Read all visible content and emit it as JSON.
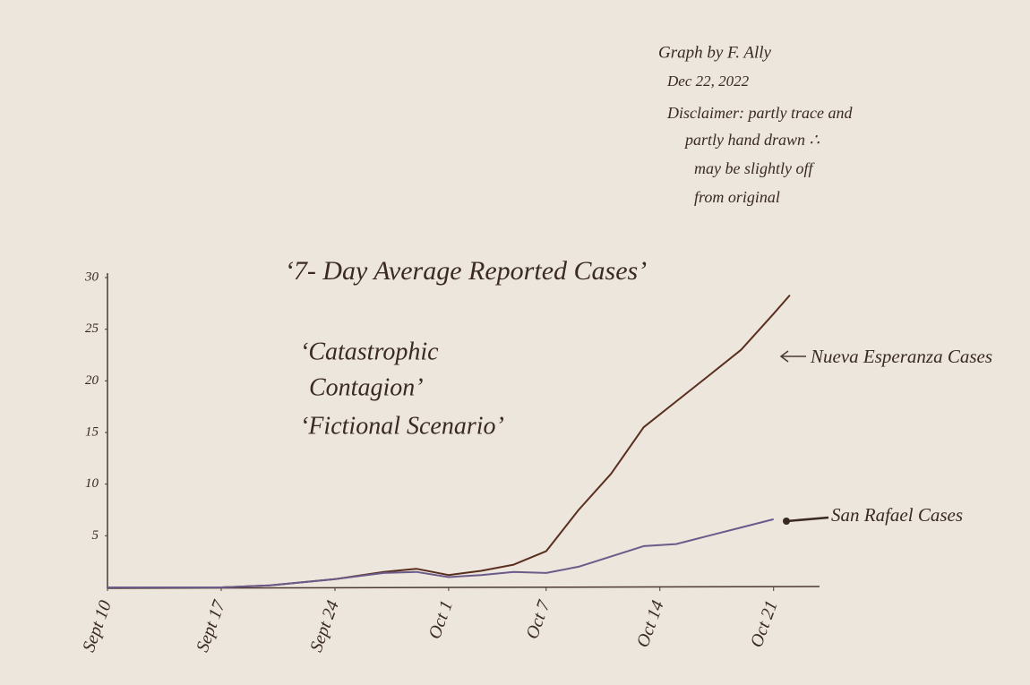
{
  "chart_data": {
    "type": "line",
    "title": "‘7- Day Average Reported Cases’",
    "subtitle": [
      "‘Catastrophic",
      "Contagion’",
      "‘Fictional Scenario’"
    ],
    "annotations": [
      "Graph by F. Ally",
      "Dec 22, 2022",
      "Disclaimer: partly trace and",
      "partly hand drawn ∴",
      "may be slightly off",
      "from original"
    ],
    "x": [
      0,
      3,
      7,
      10,
      14,
      17,
      19,
      21,
      23,
      25,
      27,
      29,
      31,
      33,
      35,
      37,
      39,
      41,
      42
    ],
    "series": [
      {
        "name": "Nueva Esperanza Cases",
        "color": "#5a2e1e",
        "values": [
          0,
          0,
          0,
          0.2,
          0.8,
          1.5,
          1.8,
          1.2,
          1.6,
          2.2,
          3.5,
          7.5,
          11,
          15.5,
          18,
          20.5,
          23,
          26.5,
          28.3
        ]
      },
      {
        "name": "San Rafael Cases",
        "color": "#6b5a8a",
        "values": [
          0,
          0,
          0,
          0.2,
          0.8,
          1.4,
          1.5,
          1.0,
          1.2,
          1.5,
          1.4,
          2.0,
          3.0,
          4.0,
          4.2,
          5.0,
          5.8,
          6.6,
          null
        ]
      }
    ],
    "xlim": [
      0,
      43
    ],
    "xticks": [
      {
        "value": 0,
        "label": "Sept 10"
      },
      {
        "value": 7,
        "label": "Sept 17"
      },
      {
        "value": 14,
        "label": "Sept 24"
      },
      {
        "value": 21,
        "label": "Oct 1"
      },
      {
        "value": 27,
        "label": "Oct 7"
      },
      {
        "value": 34,
        "label": "Oct 14"
      },
      {
        "value": 41,
        "label": "Oct 21"
      }
    ],
    "ylim": [
      0,
      30
    ],
    "yticks": [
      5,
      10,
      15,
      20,
      25,
      30
    ],
    "grid": false
  }
}
